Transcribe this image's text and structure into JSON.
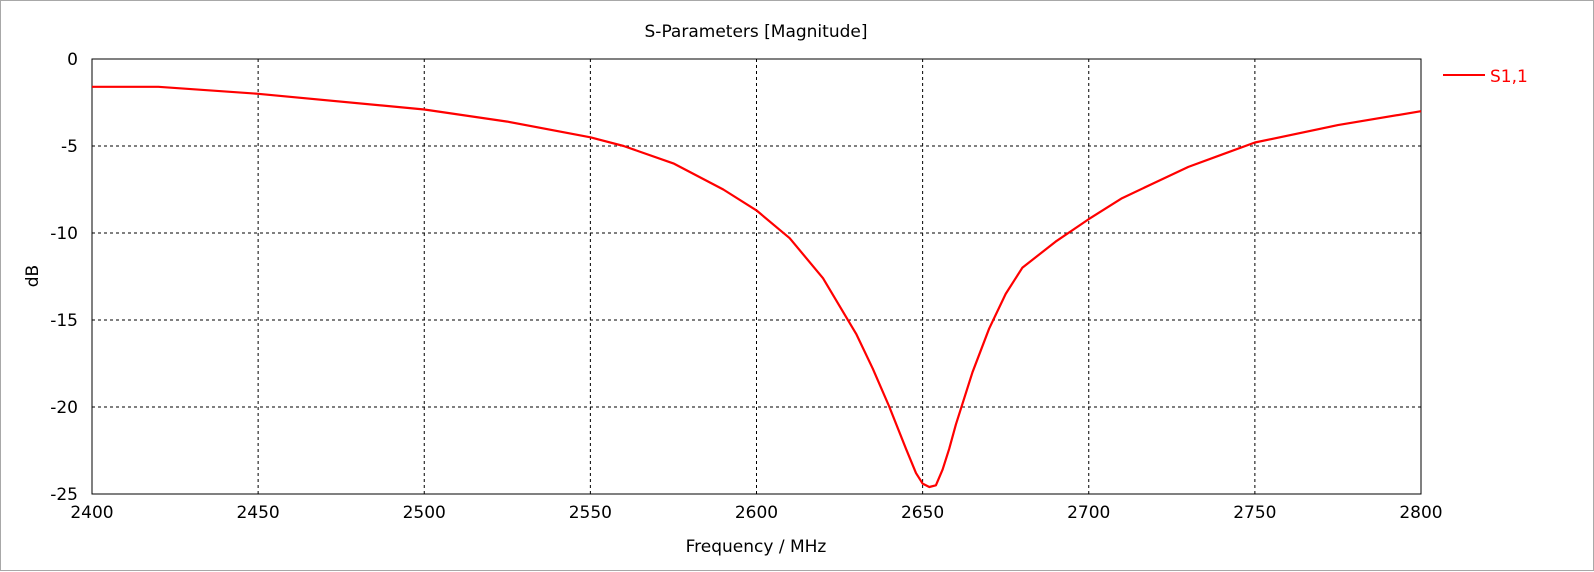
{
  "chart_data": {
    "type": "line",
    "title": "S-Parameters [Magnitude]",
    "xlabel": "Frequency / MHz",
    "ylabel": "dB",
    "xlim": [
      2400,
      2800
    ],
    "ylim": [
      -25,
      0
    ],
    "x_ticks": [
      "2400",
      "2450",
      "2500",
      "2550",
      "2600",
      "2650",
      "2700",
      "2750",
      "2800"
    ],
    "y_ticks": [
      "0",
      "-5",
      "-10",
      "-15",
      "-20",
      "-25"
    ],
    "grid": true,
    "legend_position": "top-right",
    "series": [
      {
        "name": "S1,1",
        "color": "#ff0000",
        "x": [
          2400,
          2420,
          2450,
          2500,
          2525,
          2550,
          2560,
          2575,
          2590,
          2600,
          2610,
          2620,
          2630,
          2635,
          2640,
          2645,
          2648,
          2650,
          2652,
          2654,
          2656,
          2658,
          2660,
          2665,
          2670,
          2675,
          2680,
          2690,
          2700,
          2710,
          2720,
          2730,
          2740,
          2750,
          2775,
          2800
        ],
        "y": [
          -1.6,
          -1.6,
          -2.0,
          -2.9,
          -3.6,
          -4.5,
          -5.0,
          -6.0,
          -7.5,
          -8.7,
          -10.3,
          -12.6,
          -15.8,
          -17.8,
          -20.0,
          -22.4,
          -23.8,
          -24.4,
          -24.6,
          -24.5,
          -23.6,
          -22.4,
          -21.0,
          -18.0,
          -15.5,
          -13.5,
          -12.0,
          -10.5,
          -9.2,
          -8.0,
          -7.1,
          -6.2,
          -5.5,
          -4.8,
          -3.8,
          -3.0
        ]
      }
    ]
  }
}
